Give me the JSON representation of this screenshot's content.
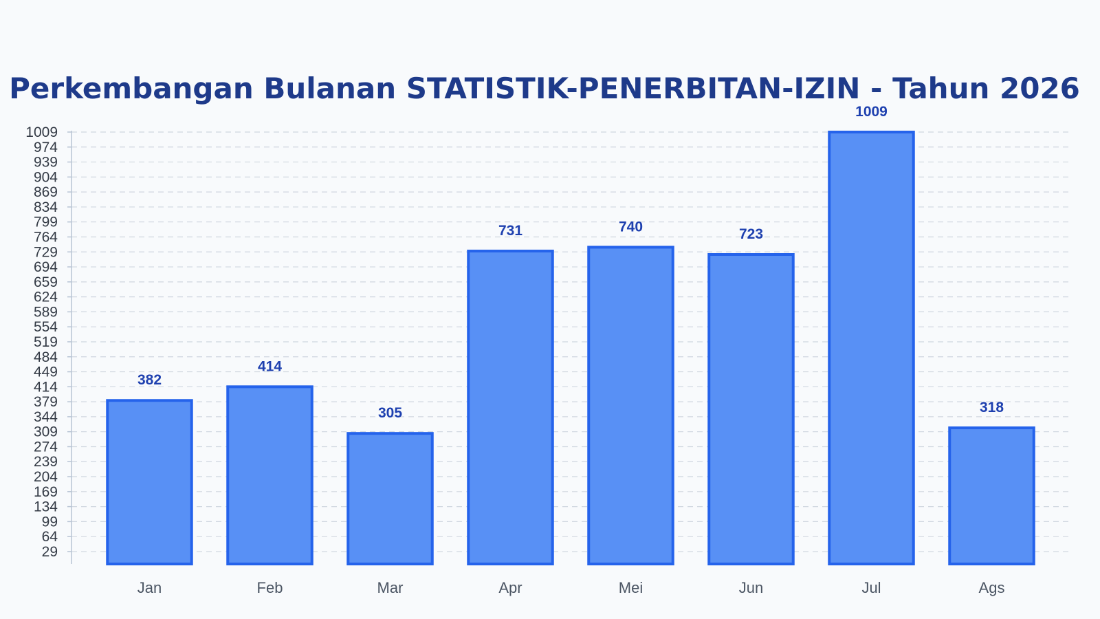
{
  "colors": {
    "background": "#f8fafc",
    "title": "#1e3a8a",
    "bar_fill": "#5890f5",
    "bar_stroke": "#2563eb",
    "value_label": "#1e40af",
    "axis": "#b8c4d4"
  },
  "chart_data": {
    "type": "bar",
    "title": "Perkembangan Bulanan STATISTIK-PENERBITAN-IZIN - Tahun 2026",
    "xlabel": "",
    "ylabel": "",
    "categories": [
      "Jan",
      "Feb",
      "Mar",
      "Apr",
      "Mei",
      "Jun",
      "Jul",
      "Ags"
    ],
    "values": [
      382,
      414,
      305,
      731,
      740,
      723,
      1009,
      318
    ],
    "y_ticks": [
      29,
      64,
      99,
      134,
      169,
      204,
      239,
      274,
      309,
      344,
      379,
      414,
      449,
      484,
      519,
      554,
      589,
      624,
      659,
      694,
      729,
      764,
      799,
      834,
      869,
      904,
      939,
      974,
      1009
    ],
    "ylim": [
      0,
      1009
    ],
    "grid": true,
    "legend": "none",
    "data_labels": true
  }
}
